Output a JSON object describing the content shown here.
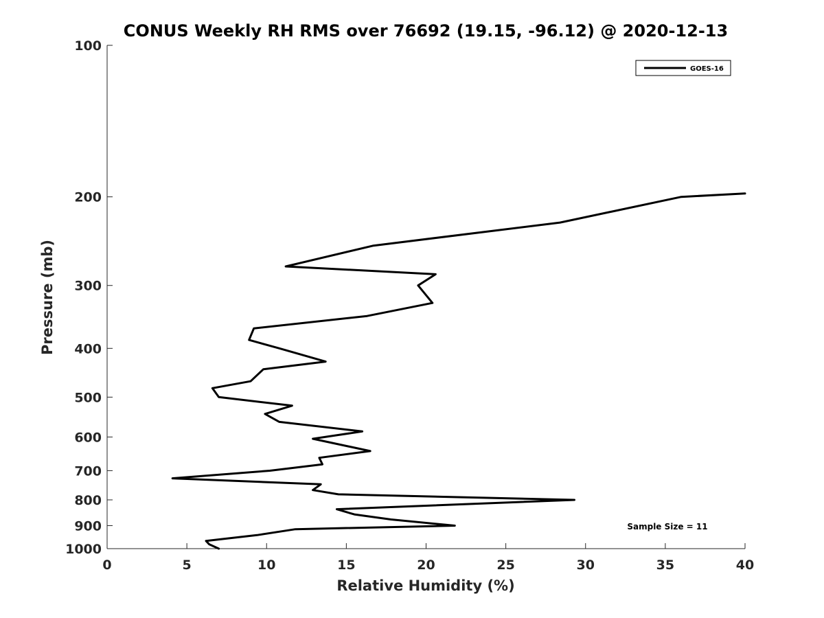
{
  "chart_data": {
    "type": "line",
    "title": "CONUS Weekly RH RMS over 76692 (19.15, -96.12) @ 2020-12-13",
    "xlabel": "Relative Humidity (%)",
    "ylabel": "Pressure (mb)",
    "xlim": [
      0,
      40
    ],
    "ylim": [
      100,
      1000
    ],
    "yscale": "log",
    "y_reversed": true,
    "grid": false,
    "legend_position": "top-right",
    "x_ticks": [
      0,
      5,
      10,
      15,
      20,
      25,
      30,
      35,
      40
    ],
    "x_tick_labels": [
      "0",
      "5",
      "10",
      "15",
      "20",
      "25",
      "30",
      "35",
      "40"
    ],
    "y_ticks": [
      100,
      200,
      300,
      400,
      500,
      600,
      700,
      800,
      900,
      1000
    ],
    "y_tick_labels": [
      "100",
      "200",
      "300",
      "400",
      "500",
      "600",
      "700",
      "800",
      "900",
      "1000"
    ],
    "series": [
      {
        "name": "GOES-16",
        "color": "#000000",
        "points": [
          {
            "x": 40.0,
            "y": 197
          },
          {
            "x": 36.0,
            "y": 200
          },
          {
            "x": 28.4,
            "y": 225
          },
          {
            "x": 16.7,
            "y": 250
          },
          {
            "x": 11.2,
            "y": 275
          },
          {
            "x": 20.6,
            "y": 285
          },
          {
            "x": 19.5,
            "y": 300
          },
          {
            "x": 20.4,
            "y": 325
          },
          {
            "x": 16.3,
            "y": 345
          },
          {
            "x": 9.2,
            "y": 365
          },
          {
            "x": 8.9,
            "y": 385
          },
          {
            "x": 10.8,
            "y": 400
          },
          {
            "x": 13.7,
            "y": 425
          },
          {
            "x": 9.8,
            "y": 440
          },
          {
            "x": 9.0,
            "y": 465
          },
          {
            "x": 6.6,
            "y": 480
          },
          {
            "x": 7.0,
            "y": 500
          },
          {
            "x": 11.6,
            "y": 520
          },
          {
            "x": 9.9,
            "y": 540
          },
          {
            "x": 10.8,
            "y": 560
          },
          {
            "x": 16.0,
            "y": 585
          },
          {
            "x": 12.9,
            "y": 605
          },
          {
            "x": 16.5,
            "y": 640
          },
          {
            "x": 13.3,
            "y": 660
          },
          {
            "x": 13.5,
            "y": 680
          },
          {
            "x": 10.2,
            "y": 700
          },
          {
            "x": 4.1,
            "y": 725
          },
          {
            "x": 13.4,
            "y": 745
          },
          {
            "x": 12.9,
            "y": 765
          },
          {
            "x": 14.5,
            "y": 780
          },
          {
            "x": 29.3,
            "y": 800
          },
          {
            "x": 14.4,
            "y": 835
          },
          {
            "x": 15.5,
            "y": 855
          },
          {
            "x": 17.8,
            "y": 875
          },
          {
            "x": 21.8,
            "y": 900
          },
          {
            "x": 11.8,
            "y": 915
          },
          {
            "x": 9.4,
            "y": 940
          },
          {
            "x": 6.2,
            "y": 965
          },
          {
            "x": 6.4,
            "y": 980
          },
          {
            "x": 7.0,
            "y": 1000
          }
        ]
      }
    ],
    "annotations": [
      {
        "text": "Sample Size = 11"
      }
    ]
  }
}
